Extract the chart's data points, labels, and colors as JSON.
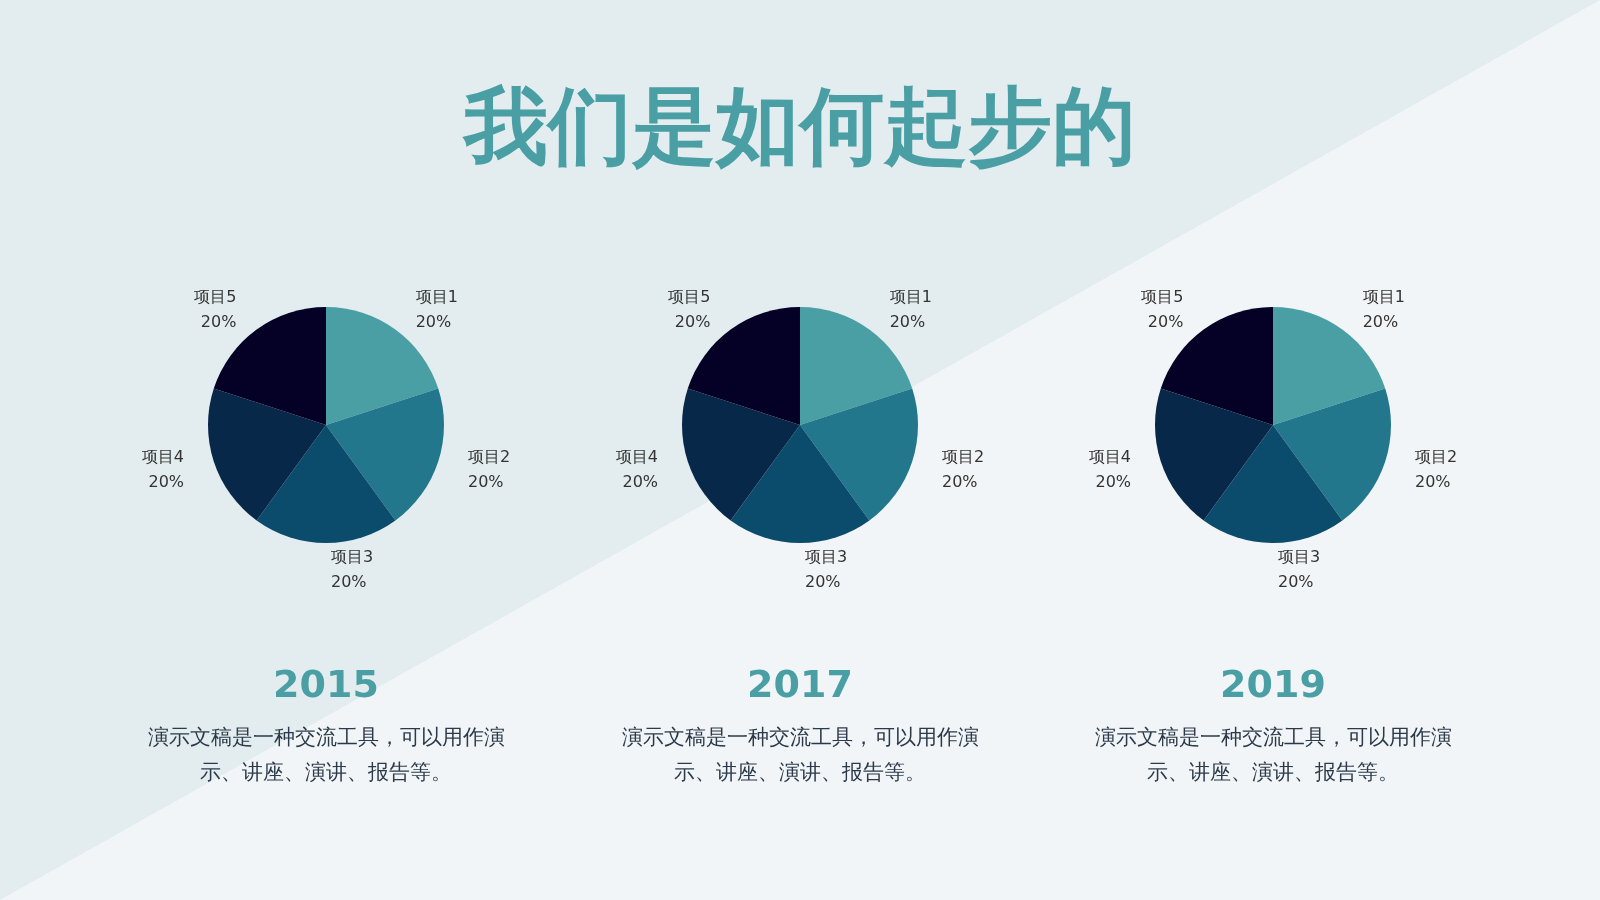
{
  "chart_data": [
    {
      "type": "other",
      "title": "我们是如何起步的"
    },
    {
      "type": "pie",
      "title": "2015",
      "annotations": [
        "演示文稿是一种交流工具，可以用作演示、讲座、演讲、报告等。"
      ],
      "categories": [
        "项目1",
        "项目2",
        "项目3",
        "项目4",
        "项目5"
      ],
      "values": [
        20,
        20,
        20,
        20,
        20
      ],
      "value_labels": [
        "20%",
        "20%",
        "20%",
        "20%",
        "20%"
      ],
      "colors": [
        "#4a9fa4",
        "#22778c",
        "#0b4b6b",
        "#08284a",
        "#040026"
      ],
      "legend": false
    },
    {
      "type": "pie",
      "title": "2017",
      "annotations": [
        "演示文稿是一种交流工具，可以用作演示、讲座、演讲、报告等。"
      ],
      "categories": [
        "项目1",
        "项目2",
        "项目3",
        "项目4",
        "项目5"
      ],
      "values": [
        20,
        20,
        20,
        20,
        20
      ],
      "value_labels": [
        "20%",
        "20%",
        "20%",
        "20%",
        "20%"
      ],
      "colors": [
        "#4a9fa4",
        "#22778c",
        "#0b4b6b",
        "#08284a",
        "#040026"
      ],
      "legend": false
    },
    {
      "type": "pie",
      "title": "2019",
      "annotations": [
        "演示文稿是一种交流工具，可以用作演示、讲座、演讲、报告等。"
      ],
      "categories": [
        "项目1",
        "项目2",
        "项目3",
        "项目4",
        "项目5"
      ],
      "values": [
        20,
        20,
        20,
        20,
        20
      ],
      "value_labels": [
        "20%",
        "20%",
        "20%",
        "20%",
        "20%"
      ],
      "colors": [
        "#4a9fa4",
        "#22778c",
        "#0b4b6b",
        "#08284a",
        "#040026"
      ],
      "legend": false
    }
  ]
}
